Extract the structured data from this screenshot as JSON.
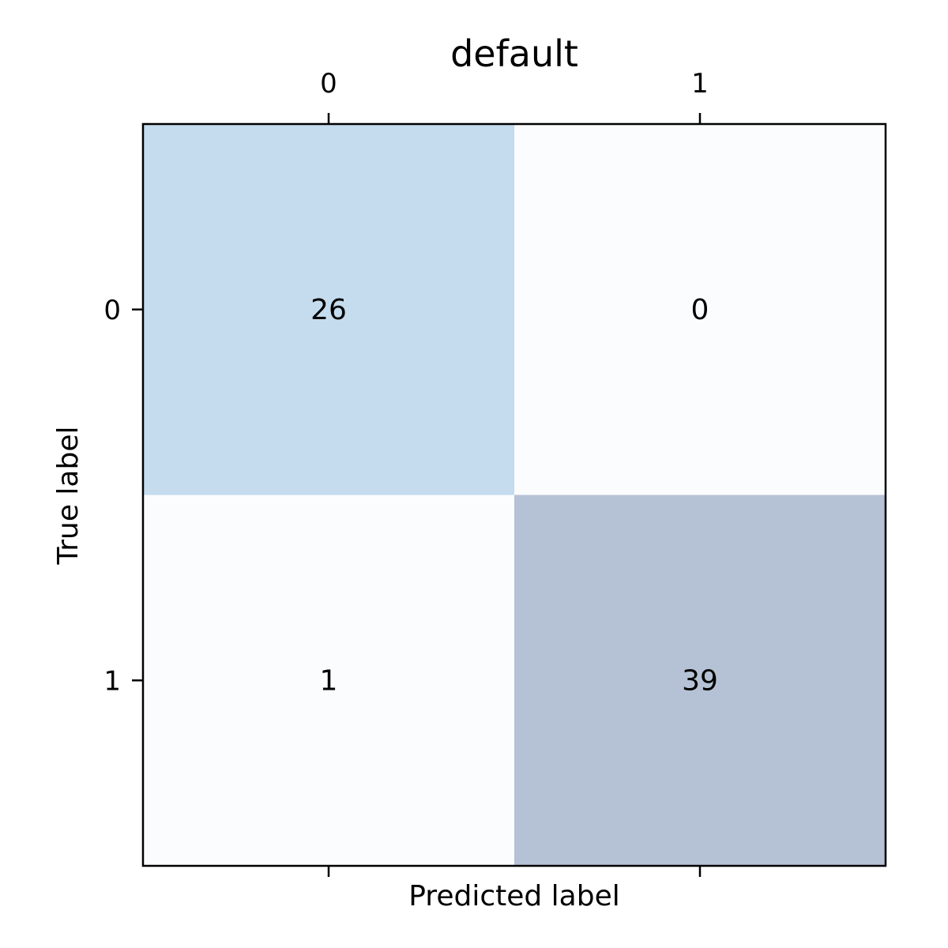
{
  "chart_data": {
    "type": "heatmap",
    "title": "default",
    "xlabel": "Predicted label",
    "ylabel": "True label",
    "x_tick_labels": [
      "0",
      "1"
    ],
    "y_tick_labels": [
      "0",
      "1"
    ],
    "x_ticks_position": "top",
    "matrix": [
      [
        26,
        0
      ],
      [
        1,
        39
      ]
    ],
    "cell_colors": [
      [
        "#c5dbee",
        "#fafcfe"
      ],
      [
        "#fafcfe",
        "#b5c1d4"
      ]
    ],
    "grid": false
  }
}
